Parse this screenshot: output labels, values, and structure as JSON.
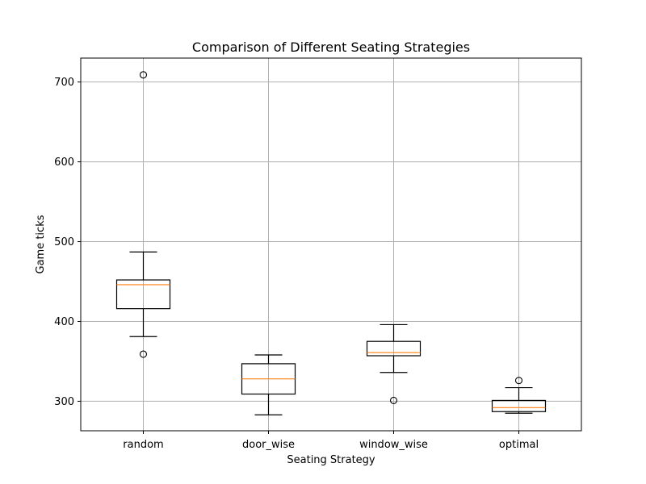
{
  "chart_data": {
    "type": "box",
    "title": "Comparison of Different Seating Strategies",
    "xlabel": "Seating Strategy",
    "ylabel": "Game ticks",
    "ylim": [
      263,
      730
    ],
    "yticks": [
      300,
      400,
      500,
      600,
      700
    ],
    "grid": true,
    "colors": {
      "box": "#000000",
      "median": "#ff7f0e",
      "grid": "#b0b0b0"
    },
    "categories": [
      "random",
      "door_wise",
      "window_wise",
      "optimal"
    ],
    "boxes": [
      {
        "category": "random",
        "whisker_low": 381,
        "q1": 416,
        "median": 446,
        "q3": 452,
        "whisker_high": 487,
        "outliers": [
          709,
          359
        ]
      },
      {
        "category": "door_wise",
        "whisker_low": 283,
        "q1": 309,
        "median": 328,
        "q3": 347,
        "whisker_high": 358,
        "outliers": []
      },
      {
        "category": "window_wise",
        "whisker_low": 336,
        "q1": 357,
        "median": 361,
        "q3": 375,
        "whisker_high": 396,
        "outliers": [
          301
        ]
      },
      {
        "category": "optimal",
        "whisker_low": 285,
        "q1": 287,
        "median": 292,
        "q3": 301,
        "whisker_high": 317,
        "outliers": [
          326
        ]
      }
    ]
  }
}
